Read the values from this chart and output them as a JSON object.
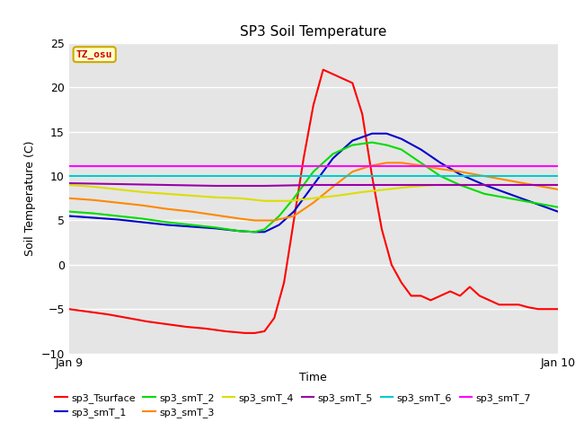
{
  "title": "SP3 Soil Temperature",
  "xlabel": "Time",
  "ylabel": "Soil Temperature (C)",
  "xlim": [
    0,
    1
  ],
  "ylim": [
    -10,
    25
  ],
  "yticks": [
    -10,
    -5,
    0,
    5,
    10,
    15,
    20,
    25
  ],
  "xtick_labels": [
    "Jan 9",
    "Jan 10"
  ],
  "annotation": "TZ_osu",
  "annotation_color": "#cc0000",
  "annotation_box_color": "#ffffcc",
  "annotation_box_edge": "#ccaa00",
  "series": {
    "sp3_Tsurface": {
      "color": "#ff0000",
      "points_x": [
        0.0,
        0.04,
        0.08,
        0.12,
        0.16,
        0.2,
        0.24,
        0.28,
        0.32,
        0.36,
        0.38,
        0.4,
        0.42,
        0.44,
        0.46,
        0.48,
        0.5,
        0.52,
        0.54,
        0.56,
        0.58,
        0.6,
        0.62,
        0.64,
        0.66,
        0.68,
        0.7,
        0.72,
        0.74,
        0.76,
        0.78,
        0.8,
        0.82,
        0.84,
        0.86,
        0.88,
        0.9,
        0.92,
        0.94,
        0.96,
        0.98,
        1.0
      ],
      "points_y": [
        -5.0,
        -5.3,
        -5.6,
        -6.0,
        -6.4,
        -6.7,
        -7.0,
        -7.2,
        -7.5,
        -7.7,
        -7.7,
        -7.5,
        -6.0,
        -2.0,
        5.0,
        12.0,
        18.0,
        22.0,
        21.5,
        21.0,
        20.5,
        17.0,
        10.0,
        4.0,
        0.0,
        -2.0,
        -3.5,
        -3.5,
        -4.0,
        -3.5,
        -3.0,
        -3.5,
        -2.5,
        -3.5,
        -4.0,
        -4.5,
        -4.5,
        -4.5,
        -4.8,
        -5.0,
        -5.0,
        -5.0
      ]
    },
    "sp3_smT_1": {
      "color": "#0000cc",
      "points_x": [
        0.0,
        0.05,
        0.1,
        0.15,
        0.2,
        0.25,
        0.3,
        0.35,
        0.38,
        0.4,
        0.43,
        0.46,
        0.5,
        0.54,
        0.58,
        0.62,
        0.65,
        0.68,
        0.72,
        0.76,
        0.8,
        0.85,
        0.9,
        0.95,
        1.0
      ],
      "points_y": [
        5.5,
        5.3,
        5.1,
        4.8,
        4.5,
        4.3,
        4.1,
        3.8,
        3.7,
        3.7,
        4.5,
        6.0,
        9.0,
        12.0,
        14.0,
        14.8,
        14.8,
        14.2,
        13.0,
        11.5,
        10.2,
        9.0,
        8.0,
        7.0,
        6.0
      ]
    },
    "sp3_smT_2": {
      "color": "#00dd00",
      "points_x": [
        0.0,
        0.05,
        0.1,
        0.15,
        0.2,
        0.25,
        0.3,
        0.35,
        0.38,
        0.4,
        0.43,
        0.46,
        0.5,
        0.54,
        0.58,
        0.62,
        0.65,
        0.68,
        0.72,
        0.76,
        0.8,
        0.85,
        0.9,
        0.95,
        1.0
      ],
      "points_y": [
        6.0,
        5.8,
        5.5,
        5.2,
        4.8,
        4.5,
        4.2,
        3.8,
        3.7,
        4.0,
        5.5,
        7.5,
        10.5,
        12.5,
        13.5,
        13.8,
        13.5,
        13.0,
        11.5,
        10.0,
        9.0,
        8.0,
        7.5,
        7.0,
        6.5
      ]
    },
    "sp3_smT_3": {
      "color": "#ff8800",
      "points_x": [
        0.0,
        0.05,
        0.1,
        0.15,
        0.2,
        0.25,
        0.3,
        0.35,
        0.38,
        0.42,
        0.46,
        0.5,
        0.54,
        0.58,
        0.62,
        0.65,
        0.68,
        0.72,
        0.76,
        0.8,
        0.85,
        0.9,
        0.95,
        1.0
      ],
      "points_y": [
        7.5,
        7.3,
        7.0,
        6.7,
        6.3,
        6.0,
        5.6,
        5.2,
        5.0,
        5.0,
        5.5,
        7.0,
        8.8,
        10.5,
        11.2,
        11.5,
        11.5,
        11.2,
        10.8,
        10.5,
        10.0,
        9.5,
        9.0,
        8.5
      ]
    },
    "sp3_smT_4": {
      "color": "#dddd00",
      "points_x": [
        0.0,
        0.05,
        0.1,
        0.15,
        0.2,
        0.25,
        0.3,
        0.35,
        0.4,
        0.45,
        0.5,
        0.55,
        0.6,
        0.65,
        0.7,
        0.75,
        0.8,
        0.85,
        0.9,
        0.95,
        1.0
      ],
      "points_y": [
        9.0,
        8.8,
        8.5,
        8.2,
        8.0,
        7.8,
        7.6,
        7.5,
        7.2,
        7.2,
        7.5,
        7.8,
        8.2,
        8.5,
        8.8,
        9.0,
        9.0,
        9.0,
        9.0,
        9.0,
        9.0
      ]
    },
    "sp3_smT_5": {
      "color": "#9900aa",
      "points_x": [
        0.0,
        0.1,
        0.2,
        0.3,
        0.4,
        0.5,
        0.6,
        0.7,
        0.8,
        0.9,
        1.0
      ],
      "points_y": [
        9.2,
        9.1,
        9.0,
        8.9,
        8.9,
        9.0,
        9.0,
        9.0,
        9.0,
        9.0,
        9.0
      ]
    },
    "sp3_smT_6": {
      "color": "#00cccc",
      "points_x": [
        0.0,
        1.0
      ],
      "points_y": [
        10.0,
        10.0
      ]
    },
    "sp3_smT_7": {
      "color": "#ff00ff",
      "points_x": [
        0.0,
        1.0
      ],
      "points_y": [
        11.1,
        11.1
      ]
    }
  },
  "background_color": "#e5e5e5",
  "grid_color": "#ffffff",
  "fig_width": 6.4,
  "fig_height": 4.8,
  "dpi": 100
}
